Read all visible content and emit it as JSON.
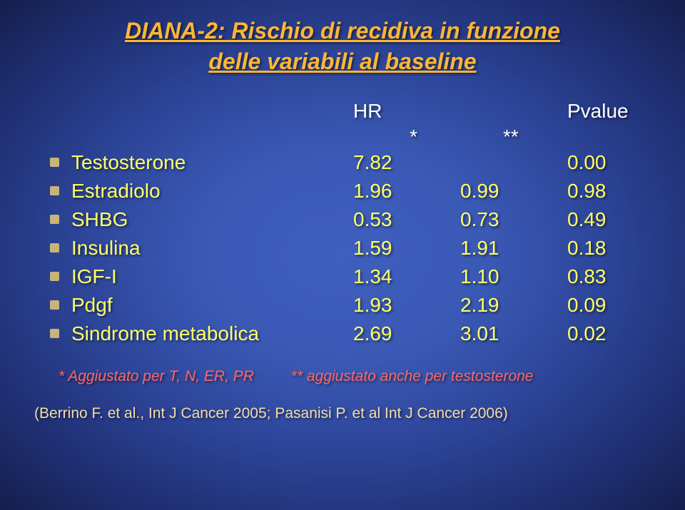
{
  "colors": {
    "title": "#ffb733",
    "text_white": "#ffffff",
    "text_yellow": "#ffff66",
    "bullet": "#c8b478",
    "foot_adj": "#ff6666",
    "foot_ref": "#f5dca8",
    "bg_center": "#3f5fbf",
    "bg_edge": "#15204f"
  },
  "fontsize": {
    "title": 32,
    "body": 28,
    "foot": 21
  },
  "title": {
    "line1": "DIANA-2: Rischio di recidiva in funzione",
    "line2": "delle variabili al baseline"
  },
  "header": {
    "hr": "HR",
    "pvalue": "Pvalue",
    "star1": "*",
    "star2": "**"
  },
  "table": {
    "columns": [
      "label",
      "HR",
      "mid",
      "Pvalue"
    ],
    "rows": [
      {
        "label": "Testosterone",
        "hr": "7.82",
        "mid": "",
        "pv": "0.00"
      },
      {
        "label": "Estradiolo",
        "hr": "1.96",
        "mid": "0.99",
        "pv": "0.98"
      },
      {
        "label": "SHBG",
        "hr": "0.53",
        "mid": "0.73",
        "pv": "0.49"
      },
      {
        "label": "Insulina",
        "hr": "1.59",
        "mid": "1.91",
        "pv": "0.18"
      },
      {
        "label": "IGF-I",
        "hr": "1.34",
        "mid": "1.10",
        "pv": "0.83"
      },
      {
        "label": "Pdgf",
        "hr": "1.93",
        "mid": "2.19",
        "pv": "0.09"
      },
      {
        "label": "Sindrome metabolica",
        "hr": "2.69",
        "mid": "3.01",
        "pv": "0.02"
      }
    ]
  },
  "footnote_adj": {
    "part1": "* Aggiustato per T, N, ER, PR",
    "part2": "** aggiustato anche per testosterone"
  },
  "footnote_ref": "(Berrino F. et al., Int J Cancer 2005; Pasanisi P. et al Int J Cancer 2006)"
}
